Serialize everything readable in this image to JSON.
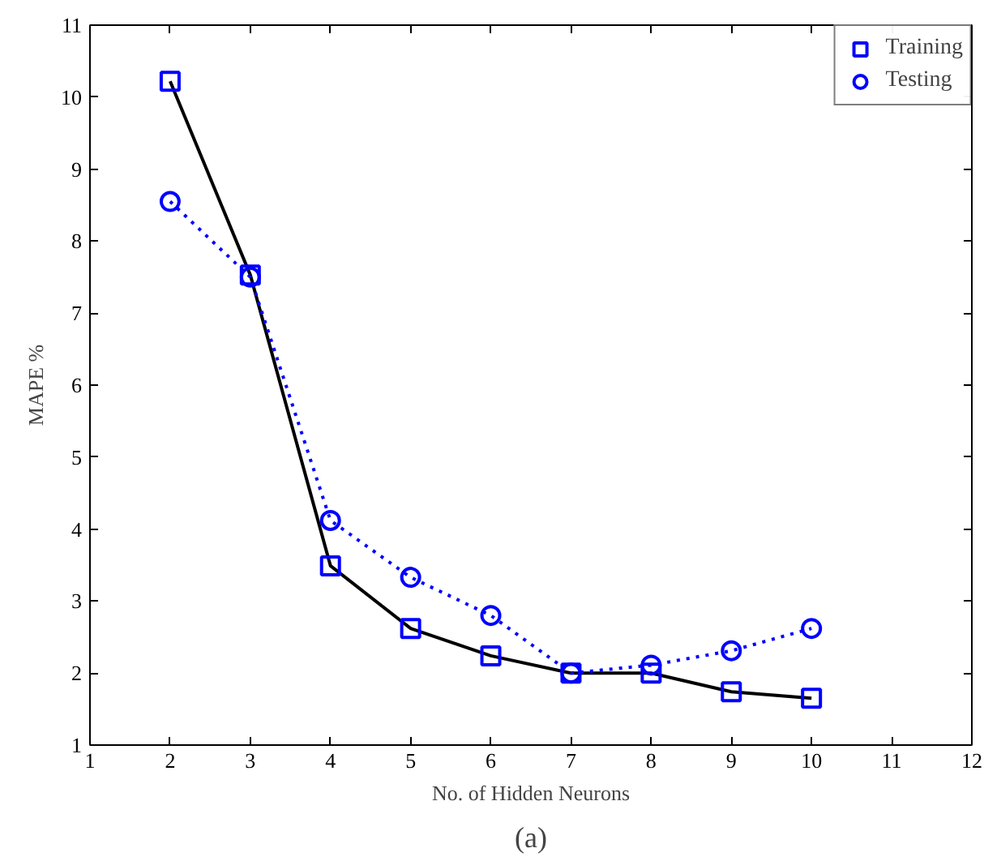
{
  "chart_data": {
    "type": "line",
    "xlabel": "No. of Hidden Neurons",
    "ylabel": "MAPE %",
    "x": [
      2,
      3,
      4,
      5,
      6,
      7,
      8,
      9,
      10
    ],
    "series": [
      {
        "name": "Training",
        "color": "#000000",
        "colors": [
          "#0000ff",
          "#0000ff",
          "#0000ff",
          "#0000ff",
          "#0000ff",
          "#0000ff",
          "#0000ff",
          "#0000ff",
          "#0000ff"
        ],
        "marker": "square",
        "line_style": "solid",
        "values": [
          10.22,
          7.53,
          3.49,
          2.62,
          2.24,
          2.0,
          2.0,
          1.74,
          1.65
        ]
      },
      {
        "name": "Testing",
        "color": "#0000ff",
        "colors": [
          "#0000ff",
          "#0000ff",
          "#0000ff",
          "#0000ff",
          "#0000ff",
          "#0000ff",
          "#0000ff",
          "#0000ff",
          "#0000ff"
        ],
        "marker": "circle",
        "line_style": "dotted",
        "values": [
          8.55,
          7.5,
          4.12,
          3.33,
          2.8,
          2.0,
          2.11,
          2.31,
          2.62
        ]
      }
    ],
    "xlim": [
      1,
      12
    ],
    "xticks": [
      1,
      2,
      3,
      4,
      5,
      6,
      7,
      8,
      9,
      10,
      11,
      12
    ],
    "ylim": [
      1,
      11
    ],
    "yticks": [
      1,
      2,
      3,
      4,
      5,
      6,
      7,
      8,
      9,
      10,
      11
    ],
    "grid": false,
    "legend": "top right",
    "annotations": [
      "(a)"
    ]
  }
}
